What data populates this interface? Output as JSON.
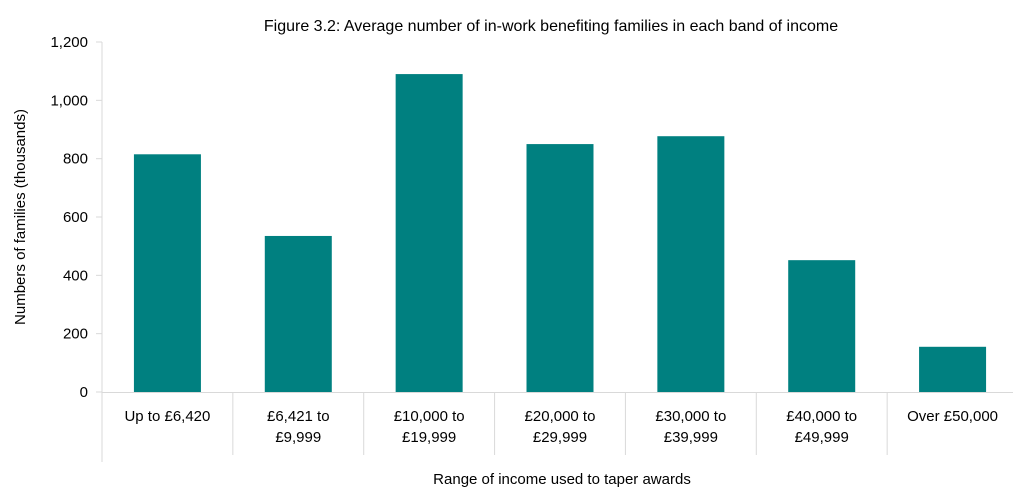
{
  "chart_data": {
    "type": "bar",
    "title": "Figure 3.2:  Average number of in-work benefiting families in each band of income",
    "xlabel": "Range of income used to taper awards",
    "ylabel": "Numbers of families (thousands)",
    "categories": [
      [
        "Up to £6,420"
      ],
      [
        "£6,421 to",
        "£9,999"
      ],
      [
        "£10,000 to",
        "£19,999"
      ],
      [
        "£20,000 to",
        "£29,999"
      ],
      [
        "£30,000 to",
        "£39,999"
      ],
      [
        "£40,000 to",
        "£49,999"
      ],
      [
        "Over £50,000"
      ]
    ],
    "values": [
      815,
      535,
      1090,
      850,
      877,
      452,
      155
    ],
    "ylim": [
      0,
      1200
    ],
    "yticks": [
      0,
      200,
      400,
      600,
      800,
      1000,
      1200
    ],
    "ytick_labels": [
      "0",
      "200",
      "400",
      "600",
      "800",
      "1,000",
      "1,200"
    ],
    "grid": false,
    "legend": "none",
    "bar_color": "#008080"
  }
}
